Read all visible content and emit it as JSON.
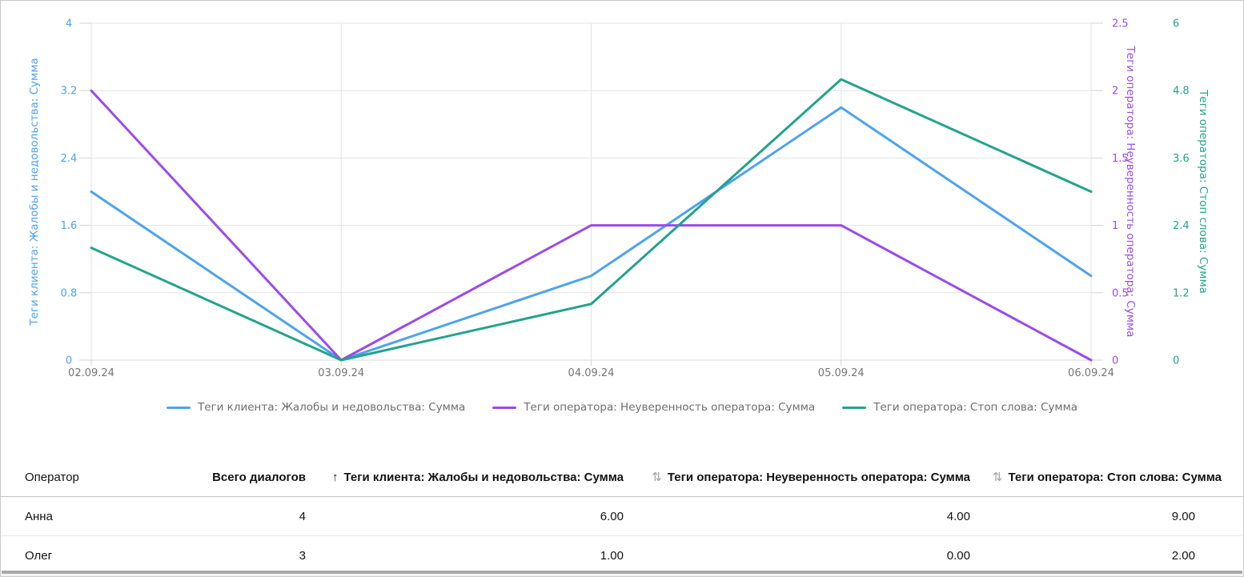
{
  "chart_data": {
    "type": "line",
    "x": [
      "02.09.24",
      "03.09.24",
      "04.09.24",
      "05.09.24",
      "06.09.24"
    ],
    "series": [
      {
        "name": "Теги клиента: Жалобы и недовольства: Сумма",
        "axis": "y_left",
        "color": "#4da2f1",
        "values": [
          2,
          0,
          1,
          3,
          1
        ]
      },
      {
        "name": "Теги оператора: Неуверенность оператора: Сумма",
        "axis": "y_right_1",
        "color": "#9a4bec",
        "values": [
          2,
          0,
          1,
          1,
          0
        ]
      },
      {
        "name": "Теги оператора: Стоп слова: Сумма",
        "axis": "y_right_2",
        "color": "#22a38c",
        "values": [
          2,
          0,
          1,
          5,
          3
        ]
      }
    ],
    "axes": {
      "y_left": {
        "title": "Теги клиента: Жалобы и недовольства: Сумма",
        "color": "#4da2f1",
        "min": 0,
        "max": 4,
        "tick_labels": [
          "0",
          "0.8",
          "1.6",
          "2.4",
          "3.2",
          "4"
        ]
      },
      "y_right_1": {
        "title": "Теги оператора: Неуверенность оператора: Сумма",
        "color": "#9a4bec",
        "min": 0,
        "max": 2.5,
        "tick_labels": [
          "0",
          "0.5",
          "1",
          "1.5",
          "2",
          "2.5"
        ]
      },
      "y_right_2": {
        "title": "Теги оператора: Стоп слова: Сумма",
        "color": "#22a38c",
        "min": 0,
        "max": 6,
        "tick_labels": [
          "0",
          "1.2",
          "2.4",
          "3.6",
          "4.8",
          "6"
        ]
      }
    },
    "grid": true,
    "legend_position": "bottom",
    "xlabel_color": "#757575"
  },
  "table": {
    "sort_icons": {
      "asc": "↑",
      "sortable": "⇅"
    },
    "columns": [
      {
        "label": "Оператор",
        "sort": "none",
        "align": "left"
      },
      {
        "label": "Всего диалогов",
        "sort": "none",
        "align": "right"
      },
      {
        "label": "Теги клиента: Жалобы и недовольства: Сумма",
        "sort": "asc",
        "align": "right"
      },
      {
        "label": "Теги оператора: Неуверенность оператора: Сумма",
        "sort": "sortable",
        "align": "right"
      },
      {
        "label": "Теги оператора: Стоп слова: Сумма",
        "sort": "sortable",
        "align": "right"
      }
    ],
    "rows": [
      {
        "cells": [
          "Анна",
          "4",
          "6.00",
          "4.00",
          "9.00"
        ]
      },
      {
        "cells": [
          "Олег",
          "3",
          "1.00",
          "0.00",
          "2.00"
        ]
      }
    ]
  }
}
